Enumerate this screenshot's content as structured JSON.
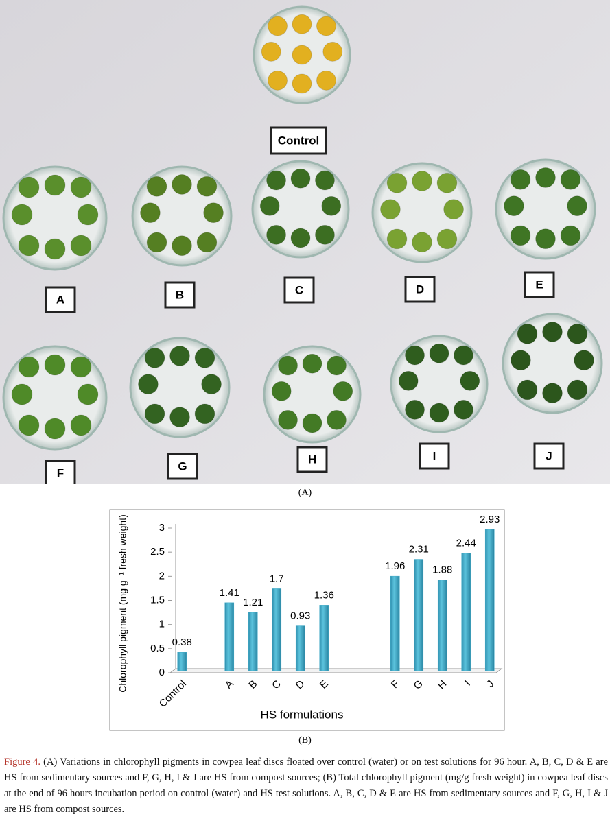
{
  "photo": {
    "labels": [
      "Control",
      "A",
      "B",
      "C",
      "D",
      "E",
      "F",
      "G",
      "H",
      "I",
      "J"
    ]
  },
  "panel_a": "(A)",
  "chart_data": {
    "type": "bar",
    "ylabel": "Chlorophyll pigment (mg g⁻¹ fresh weight)",
    "xlabel": "HS formulations",
    "categories": [
      "Control",
      null,
      "A",
      "B",
      "C",
      "D",
      "E",
      null,
      null,
      "F",
      "G",
      "H",
      "I",
      "J"
    ],
    "values": [
      0.38,
      null,
      1.41,
      1.21,
      1.7,
      0.93,
      1.36,
      null,
      null,
      1.96,
      2.31,
      1.88,
      2.44,
      2.93
    ],
    "color": "#3ea9c6",
    "ylim": [
      0,
      3
    ],
    "yticks": [
      0,
      0.5,
      1,
      1.5,
      2,
      2.5,
      3
    ],
    "grid": false
  },
  "panel_b": "(B)",
  "caption": {
    "label": "Figure 4.",
    "text": "(A) Variations in chlorophyll pigments in cowpea leaf discs floated over control (water) or on test solutions for 96 hour. A, B, C, D & E are HS from sedimentary sources and F, G, H, I & J are HS from compost sources; (B) Total chlorophyll pigment (mg/g fresh weight) in cowpea leaf discs at the end of 96 hours incubation period on control (water) and HS test solutions. A, B, C, D & E are HS from sedimentary sources and F, G, H, I & J are HS from compost sources."
  }
}
